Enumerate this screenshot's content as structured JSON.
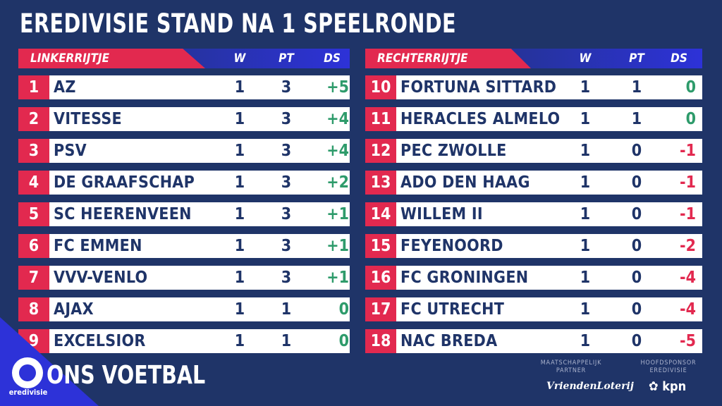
{
  "title": "EREDIVISIE STAND NA 1 SPEELRONDE",
  "columns": {
    "w": "W",
    "pt": "PT",
    "ds": "DS"
  },
  "left": {
    "label": "LINKERRIJTJE",
    "rows": [
      {
        "pos": "1",
        "team": "AZ",
        "w": "1",
        "pt": "3",
        "ds": "+5",
        "ds_type": "pos-diff"
      },
      {
        "pos": "2",
        "team": "VITESSE",
        "w": "1",
        "pt": "3",
        "ds": "+4",
        "ds_type": "pos-diff"
      },
      {
        "pos": "3",
        "team": "PSV",
        "w": "1",
        "pt": "3",
        "ds": "+4",
        "ds_type": "pos-diff"
      },
      {
        "pos": "4",
        "team": "DE GRAAFSCHAP",
        "w": "1",
        "pt": "3",
        "ds": "+2",
        "ds_type": "pos-diff"
      },
      {
        "pos": "5",
        "team": "SC HEERENVEEN",
        "w": "1",
        "pt": "3",
        "ds": "+1",
        "ds_type": "pos-diff"
      },
      {
        "pos": "6",
        "team": "FC EMMEN",
        "w": "1",
        "pt": "3",
        "ds": "+1",
        "ds_type": "pos-diff"
      },
      {
        "pos": "7",
        "team": "VVV-VENLO",
        "w": "1",
        "pt": "3",
        "ds": "+1",
        "ds_type": "pos-diff"
      },
      {
        "pos": "8",
        "team": "AJAX",
        "w": "1",
        "pt": "1",
        "ds": "0",
        "ds_type": "zero"
      },
      {
        "pos": "9",
        "team": "EXCELSIOR",
        "w": "1",
        "pt": "1",
        "ds": "0",
        "ds_type": "zero"
      }
    ]
  },
  "right": {
    "label": "RECHTERRIJTJE",
    "rows": [
      {
        "pos": "10",
        "team": "FORTUNA SITTARD",
        "w": "1",
        "pt": "1",
        "ds": "0",
        "ds_type": "zero"
      },
      {
        "pos": "11",
        "team": "HERACLES ALMELO",
        "w": "1",
        "pt": "1",
        "ds": "0",
        "ds_type": "zero"
      },
      {
        "pos": "12",
        "team": "PEC ZWOLLE",
        "w": "1",
        "pt": "0",
        "ds": "-1",
        "ds_type": "neg"
      },
      {
        "pos": "13",
        "team": "ADO DEN HAAG",
        "w": "1",
        "pt": "0",
        "ds": "-1",
        "ds_type": "neg"
      },
      {
        "pos": "14",
        "team": "WILLEM II",
        "w": "1",
        "pt": "0",
        "ds": "-1",
        "ds_type": "neg"
      },
      {
        "pos": "15",
        "team": "FEYENOORD",
        "w": "1",
        "pt": "0",
        "ds": "-2",
        "ds_type": "neg"
      },
      {
        "pos": "16",
        "team": "FC GRONINGEN",
        "w": "1",
        "pt": "0",
        "ds": "-4",
        "ds_type": "neg"
      },
      {
        "pos": "17",
        "team": "FC UTRECHT",
        "w": "1",
        "pt": "0",
        "ds": "-4",
        "ds_type": "neg"
      },
      {
        "pos": "18",
        "team": "NAC BREDA",
        "w": "1",
        "pt": "0",
        "ds": "-5",
        "ds_type": "neg"
      }
    ]
  },
  "footer": {
    "logo_text": "eredivisie",
    "slogan": "ONS VOETBAL",
    "partner_caption": "MAATSCHAPPELIJK PARTNER",
    "partner_name": "VriendenLoterij",
    "sponsor_caption": "HOOFDSPONSOR EREDIVISIE",
    "sponsor_name": "kpn"
  },
  "colors": {
    "background": "#1f3468",
    "accent_red": "#e2294f",
    "accent_blue": "#2d32d8",
    "positive": "#2e9b6b",
    "negative": "#e2294f"
  }
}
